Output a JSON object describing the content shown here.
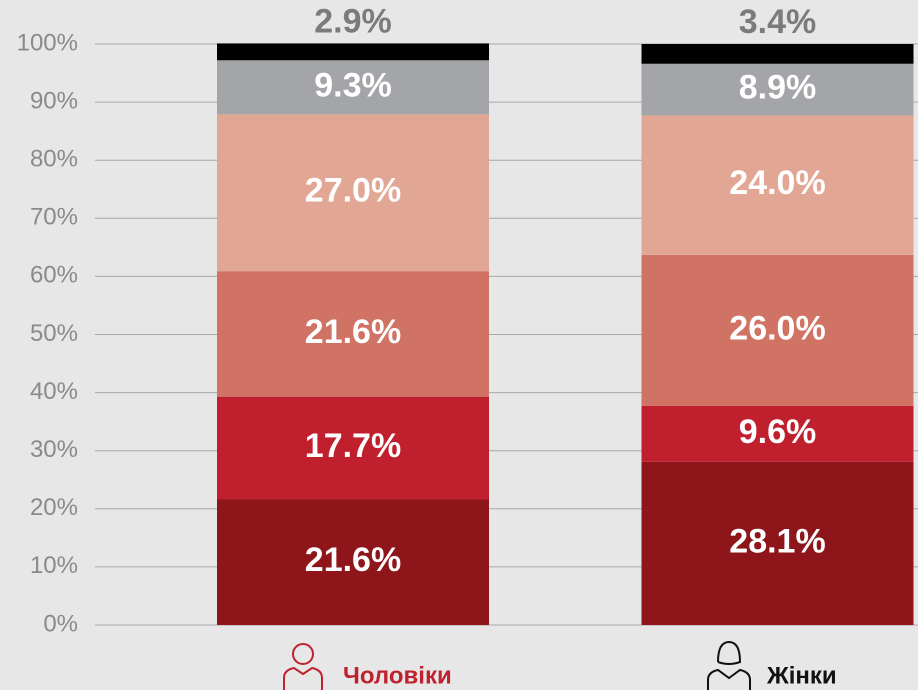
{
  "chart_data": {
    "type": "stacked_bar",
    "categories": [
      "Чоловіки",
      "Жінки"
    ],
    "category_colors": [
      "#c0212f",
      "#111111"
    ],
    "series": [
      {
        "color": "#8e161b",
        "values": [
          21.6,
          28.1
        ],
        "value_labels": [
          "21.6%",
          "28.1%"
        ]
      },
      {
        "color": "#c0202e",
        "values": [
          17.7,
          9.6
        ],
        "value_labels": [
          "17.7%",
          "9.6%"
        ]
      },
      {
        "color": "#d07264",
        "values": [
          21.6,
          26.0
        ],
        "value_labels": [
          "21.6%",
          "26.0%"
        ]
      },
      {
        "color": "#e2a694",
        "values": [
          27.0,
          24.0
        ],
        "value_labels": [
          "27.0%",
          "24.0%"
        ]
      },
      {
        "color": "#a4a5a8",
        "values": [
          9.3,
          8.9
        ],
        "value_labels": [
          "9.3%",
          "8.9%"
        ]
      },
      {
        "color": "#000000",
        "values": [
          2.9,
          3.4
        ],
        "value_labels": [
          "2.9%",
          "3.4%"
        ]
      }
    ],
    "ylim": [
      0,
      100
    ],
    "yticks": [
      {
        "value": 0,
        "label": "0%"
      },
      {
        "value": 10,
        "label": "10%"
      },
      {
        "value": 20,
        "label": "20%"
      },
      {
        "value": 30,
        "label": "30%"
      },
      {
        "value": 40,
        "label": "40%"
      },
      {
        "value": 50,
        "label": "50%"
      },
      {
        "value": 60,
        "label": "60%"
      },
      {
        "value": 70,
        "label": "70%"
      },
      {
        "value": 80,
        "label": "80%"
      },
      {
        "value": 90,
        "label": "90%"
      },
      {
        "value": 100,
        "label": "100%"
      }
    ],
    "grid": true
  }
}
